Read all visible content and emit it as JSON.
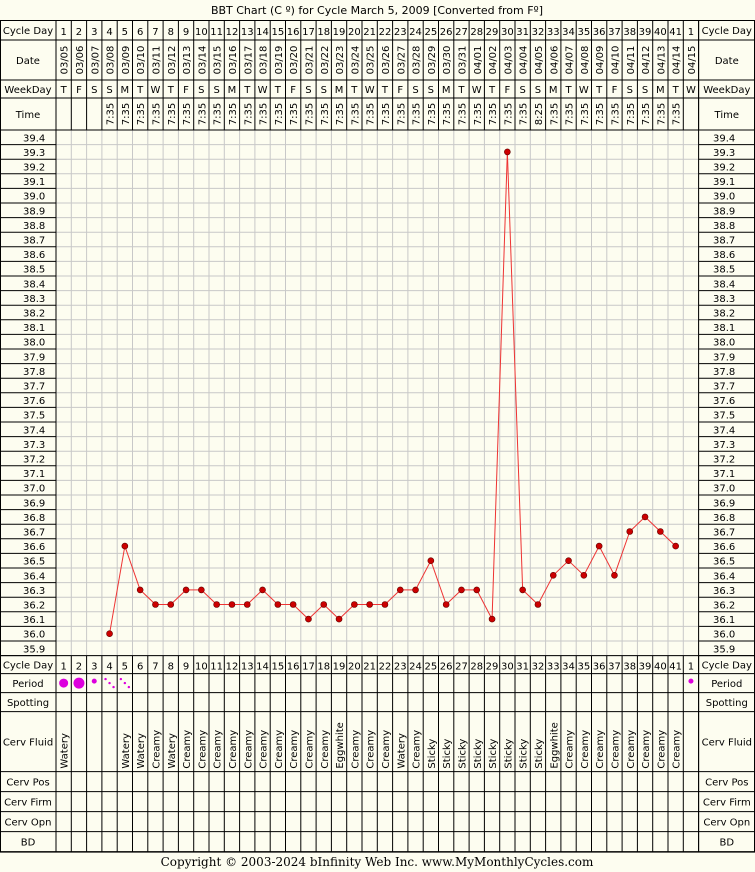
{
  "page": {
    "background": "#fdfdf0",
    "grid_color": "#c8c8c8",
    "line_color": "#000000",
    "point_color": "#cc0000",
    "period_color": "#dd00dd",
    "copyright": "Copyright © 2003-2024 bInfinity Web Inc.    www.MyMonthlyCycles.com"
  },
  "chart_data": {
    "type": "line",
    "title": "BBT Chart (C º) for Cycle March 5, 2009  [Converted from Fº]",
    "ylim": [
      35.9,
      39.4
    ],
    "y_step": 0.1,
    "grid": true,
    "row_labels": {
      "cycle_day": "Cycle Day",
      "date": "Date",
      "weekday": "WeekDay",
      "time": "Time",
      "period": "Period",
      "spotting": "Spotting",
      "cerv_fluid": "Cerv Fluid",
      "cerv_pos": "Cerv Pos",
      "cerv_firm": "Cerv Firm",
      "cerv_opn": "Cerv Opn",
      "bd": "BD"
    },
    "cycle_days": [
      "1",
      "2",
      "3",
      "4",
      "5",
      "6",
      "7",
      "8",
      "9",
      "10",
      "11",
      "12",
      "13",
      "14",
      "15",
      "16",
      "17",
      "18",
      "19",
      "20",
      "21",
      "22",
      "23",
      "24",
      "25",
      "26",
      "27",
      "28",
      "29",
      "30",
      "31",
      "32",
      "33",
      "34",
      "35",
      "36",
      "37",
      "38",
      "39",
      "40",
      "41",
      "1"
    ],
    "dates": [
      "03/05",
      "03/06",
      "03/07",
      "03/08",
      "03/09",
      "03/10",
      "03/11",
      "03/12",
      "03/13",
      "03/14",
      "03/15",
      "03/16",
      "03/17",
      "03/18",
      "03/19",
      "03/20",
      "03/21",
      "03/22",
      "03/23",
      "03/24",
      "03/25",
      "03/26",
      "03/27",
      "03/28",
      "03/29",
      "03/30",
      "03/31",
      "04/01",
      "04/02",
      "04/03",
      "04/04",
      "04/05",
      "04/06",
      "04/07",
      "04/08",
      "04/09",
      "04/10",
      "04/11",
      "04/12",
      "04/13",
      "04/14",
      "04/15"
    ],
    "weekdays": [
      "T",
      "F",
      "S",
      "S",
      "M",
      "T",
      "W",
      "T",
      "F",
      "S",
      "S",
      "M",
      "T",
      "W",
      "T",
      "F",
      "S",
      "S",
      "M",
      "T",
      "W",
      "T",
      "F",
      "S",
      "S",
      "M",
      "T",
      "W",
      "T",
      "F",
      "S",
      "S",
      "M",
      "T",
      "W",
      "T",
      "F",
      "S",
      "S",
      "M",
      "T",
      "W"
    ],
    "times": [
      "",
      "",
      "",
      "7:35",
      "7:35",
      "7:35",
      "7:35",
      "7:35",
      "7:35",
      "7:35",
      "7:35",
      "7:35",
      "7:35",
      "7:35",
      "7:35",
      "7:35",
      "7:35",
      "7:35",
      "7:35",
      "7:35",
      "7:35",
      "7:35",
      "7:35",
      "7:35",
      "7:35",
      "7:35",
      "7:35",
      "7:35",
      "7:35",
      "7:35",
      "7:35",
      "8:25",
      "7:35",
      "7:35",
      "7:35",
      "7:35",
      "7:35",
      "7:35",
      "7:35",
      "7:35",
      "7:35",
      ""
    ],
    "temperatures": [
      null,
      null,
      null,
      36.0,
      36.6,
      36.3,
      36.2,
      36.2,
      36.3,
      36.3,
      36.2,
      36.2,
      36.2,
      36.3,
      36.2,
      36.2,
      36.1,
      36.2,
      36.1,
      36.2,
      36.2,
      36.2,
      36.3,
      36.3,
      36.5,
      36.2,
      36.3,
      36.3,
      36.1,
      39.3,
      36.3,
      36.2,
      36.4,
      36.5,
      36.4,
      36.6,
      36.4,
      36.7,
      36.8,
      36.7,
      36.6,
      null
    ],
    "y_ticks": [
      "39.4",
      "39.3",
      "39.2",
      "39.1",
      "39.0",
      "38.9",
      "38.8",
      "38.7",
      "38.6",
      "38.5",
      "38.4",
      "38.3",
      "38.2",
      "38.1",
      "38.0",
      "37.9",
      "37.8",
      "37.7",
      "37.6",
      "37.5",
      "37.4",
      "37.3",
      "37.2",
      "37.1",
      "37.0",
      "36.9",
      "36.8",
      "36.7",
      "36.6",
      "36.5",
      "36.4",
      "36.3",
      "36.2",
      "36.1",
      "36.0",
      "35.9"
    ],
    "period": [
      "heavy",
      "heavy",
      "light",
      "spotty",
      "spotty",
      "",
      "",
      "",
      "",
      "",
      "",
      "",
      "",
      "",
      "",
      "",
      "",
      "",
      "",
      "",
      "",
      "",
      "",
      "",
      "",
      "",
      "",
      "",
      "",
      "",
      "",
      "",
      "",
      "",
      "",
      "",
      "",
      "",
      "",
      "",
      "",
      "light"
    ],
    "cerv_fluid": [
      "Watery",
      "",
      "",
      "",
      "Watery",
      "Watery",
      "Creamy",
      "Watery",
      "Creamy",
      "Creamy",
      "Creamy",
      "Creamy",
      "Creamy",
      "Creamy",
      "Creamy",
      "Creamy",
      "Creamy",
      "Creamy",
      "Eggwhite",
      "Creamy",
      "Creamy",
      "Creamy",
      "Watery",
      "Creamy",
      "Sticky",
      "Sticky",
      "Sticky",
      "Sticky",
      "Sticky",
      "Sticky",
      "Sticky",
      "Sticky",
      "Eggwhite",
      "Creamy",
      "Creamy",
      "Creamy",
      "Creamy",
      "Creamy",
      "Creamy",
      "Creamy",
      "Creamy",
      ""
    ]
  }
}
